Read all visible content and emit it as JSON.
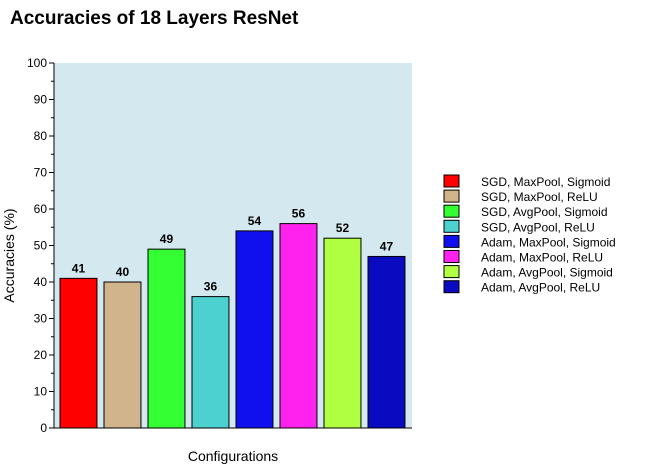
{
  "chart_data": {
    "type": "bar",
    "title": "Accuracies of 18 Layers ResNet",
    "xlabel": "Configurations",
    "ylabel": "Accuracies (%)",
    "ylim": [
      0,
      100
    ],
    "yticks": [
      0,
      10,
      20,
      30,
      40,
      50,
      60,
      70,
      80,
      90,
      100
    ],
    "grid": false,
    "legend_position": "right",
    "plot_background": "#d4e8f0",
    "categories": [
      "SGD, MaxPool, Sigmoid",
      "SGD, MaxPool, ReLU",
      "SGD, AvgPool, Sigmoid",
      "SGD, AvgPool, ReLU",
      "Adam, MaxPool, Sigmoid",
      "Adam, MaxPool, ReLU",
      "Adam, AvgPool, Sigmoid",
      "Adam, AvgPool, ReLU"
    ],
    "values": [
      41,
      40,
      49,
      36,
      54,
      56,
      52,
      47
    ],
    "colors": [
      "#ff0000",
      "#d2b48c",
      "#33ff33",
      "#4dd0d0",
      "#1010ee",
      "#ff22ee",
      "#b0ff40",
      "#0a0ac0"
    ]
  }
}
